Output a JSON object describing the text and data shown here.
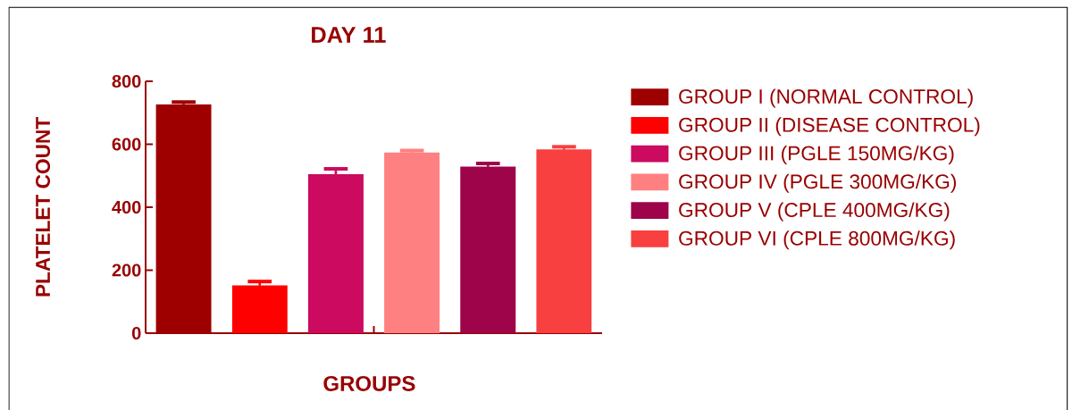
{
  "chart_data": {
    "type": "bar",
    "title": "DAY 11",
    "xlabel": "GROUPS",
    "ylabel": "PLATELET COUNT",
    "categories": [
      null,
      null,
      null,
      null,
      null,
      null
    ],
    "series": [
      {
        "name": "GROUP I (NORMAL CONTROL)",
        "color": "#9e0000",
        "values": [
          727,
          null,
          null,
          null,
          null,
          null
        ],
        "errors": [
          7,
          null,
          null,
          null,
          null,
          null
        ]
      },
      {
        "name": "GROUP II (DISEASE CONTROL)",
        "color": "#ff0000",
        "values": [
          null,
          152,
          null,
          null,
          null,
          null
        ],
        "errors": [
          null,
          12,
          null,
          null,
          null,
          null
        ]
      },
      {
        "name": "GROUP III (PGLE 150MG/KG)",
        "color": "#cc0a60",
        "values": [
          null,
          null,
          505,
          null,
          null,
          null
        ],
        "errors": [
          null,
          null,
          17,
          null,
          null,
          null
        ]
      },
      {
        "name": "GROUP IV (PGLE 300MG/KG)",
        "color": "#ff8080",
        "values": [
          null,
          null,
          null,
          574,
          null,
          null
        ],
        "errors": [
          null,
          null,
          null,
          6,
          null,
          null
        ]
      },
      {
        "name": "GROUP V (CPLE 400MG/KG)",
        "color": "#9e0449",
        "values": [
          null,
          null,
          null,
          null,
          529,
          null
        ],
        "errors": [
          null,
          null,
          null,
          null,
          10,
          null
        ]
      },
      {
        "name": "GROUP VI (CPLE 800MG/KG)",
        "color": "#f84040",
        "values": [
          null,
          null,
          null,
          null,
          null,
          584
        ],
        "errors": [
          null,
          null,
          null,
          null,
          null,
          8
        ]
      }
    ],
    "ylim": [
      0,
      800
    ],
    "yticks": [
      0,
      200,
      400,
      600,
      800
    ],
    "legend": "right"
  }
}
